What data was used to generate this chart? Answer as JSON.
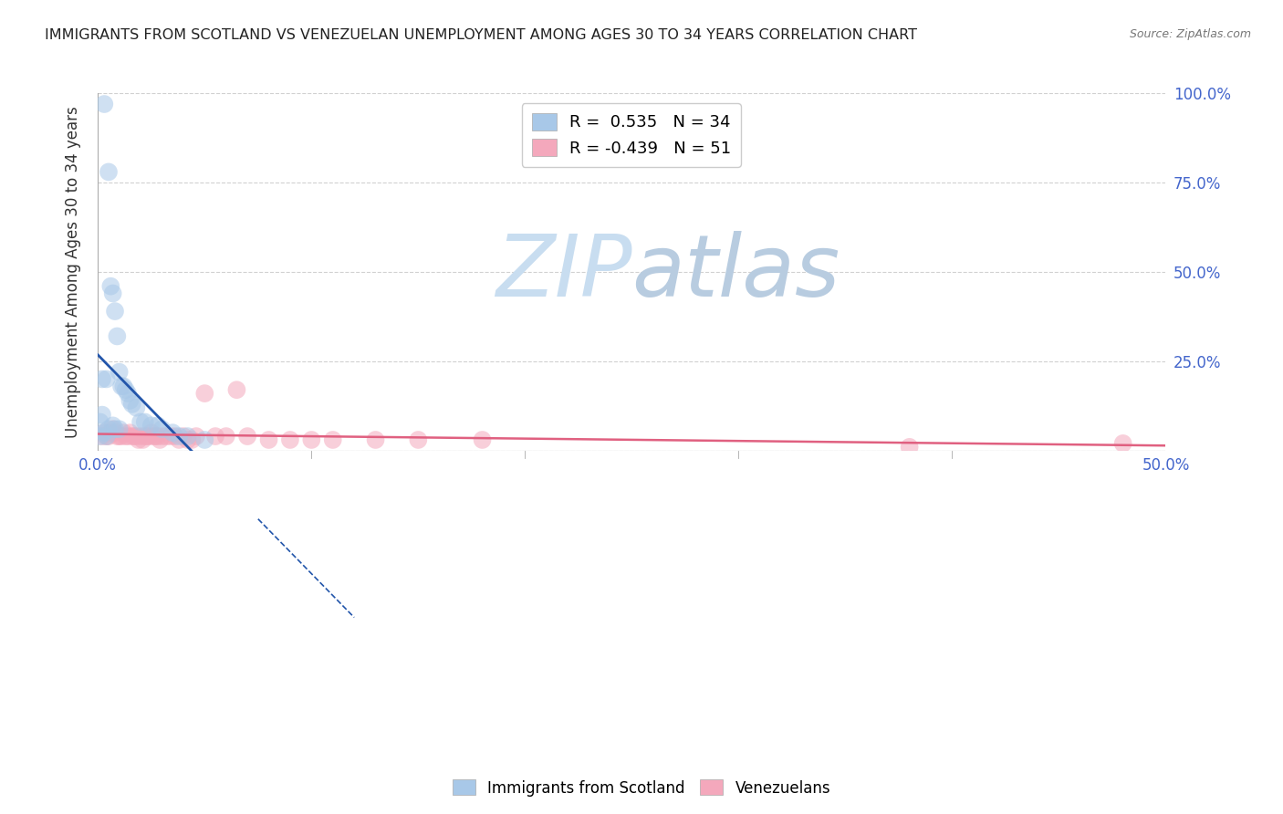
{
  "title": "IMMIGRANTS FROM SCOTLAND VS VENEZUELAN UNEMPLOYMENT AMONG AGES 30 TO 34 YEARS CORRELATION CHART",
  "source": "Source: ZipAtlas.com",
  "xlabel_blue": "Immigrants from Scotland",
  "xlabel_pink": "Venezuelans",
  "ylabel": "Unemployment Among Ages 30 to 34 years",
  "xlim": [
    0.0,
    0.5
  ],
  "ylim": [
    0.0,
    1.0
  ],
  "yticks": [
    0.0,
    0.25,
    0.5,
    0.75,
    1.0
  ],
  "xticks": [
    0.0,
    0.1,
    0.2,
    0.3,
    0.4,
    0.5
  ],
  "R_blue": 0.535,
  "N_blue": 34,
  "R_pink": -0.439,
  "N_pink": 51,
  "blue_color": "#a8c8e8",
  "pink_color": "#f4a8bc",
  "blue_line_color": "#2255aa",
  "pink_line_color": "#e06080",
  "blue_scatter_x": [
    0.001,
    0.001,
    0.002,
    0.002,
    0.003,
    0.003,
    0.004,
    0.004,
    0.005,
    0.005,
    0.006,
    0.007,
    0.007,
    0.008,
    0.008,
    0.009,
    0.01,
    0.01,
    0.011,
    0.012,
    0.013,
    0.014,
    0.015,
    0.016,
    0.018,
    0.02,
    0.022,
    0.025,
    0.028,
    0.03,
    0.035,
    0.038,
    0.042,
    0.05
  ],
  "blue_scatter_y": [
    0.08,
    0.04,
    0.2,
    0.1,
    0.97,
    0.05,
    0.2,
    0.04,
    0.78,
    0.06,
    0.46,
    0.44,
    0.07,
    0.39,
    0.06,
    0.32,
    0.22,
    0.06,
    0.18,
    0.18,
    0.17,
    0.16,
    0.14,
    0.13,
    0.12,
    0.08,
    0.08,
    0.07,
    0.07,
    0.06,
    0.05,
    0.04,
    0.04,
    0.03
  ],
  "pink_scatter_x": [
    0.002,
    0.003,
    0.004,
    0.005,
    0.006,
    0.007,
    0.008,
    0.009,
    0.01,
    0.011,
    0.012,
    0.013,
    0.014,
    0.015,
    0.016,
    0.017,
    0.018,
    0.019,
    0.02,
    0.021,
    0.022,
    0.023,
    0.024,
    0.025,
    0.026,
    0.027,
    0.028,
    0.029,
    0.03,
    0.032,
    0.034,
    0.036,
    0.038,
    0.04,
    0.042,
    0.044,
    0.046,
    0.05,
    0.055,
    0.06,
    0.065,
    0.07,
    0.08,
    0.09,
    0.1,
    0.11,
    0.13,
    0.15,
    0.18,
    0.38,
    0.48
  ],
  "pink_scatter_y": [
    0.04,
    0.05,
    0.04,
    0.04,
    0.05,
    0.06,
    0.05,
    0.04,
    0.04,
    0.04,
    0.05,
    0.04,
    0.04,
    0.05,
    0.04,
    0.04,
    0.04,
    0.03,
    0.04,
    0.03,
    0.04,
    0.04,
    0.04,
    0.05,
    0.04,
    0.04,
    0.04,
    0.03,
    0.04,
    0.04,
    0.04,
    0.04,
    0.03,
    0.04,
    0.03,
    0.03,
    0.04,
    0.16,
    0.04,
    0.04,
    0.17,
    0.04,
    0.03,
    0.03,
    0.03,
    0.03,
    0.03,
    0.03,
    0.03,
    0.01,
    0.02
  ],
  "watermark_zip_color": "#c8ddf0",
  "watermark_atlas_color": "#b8cce0",
  "background_color": "#ffffff",
  "grid_color": "#cccccc",
  "tick_color": "#4466cc",
  "axis_label_color": "#333333"
}
